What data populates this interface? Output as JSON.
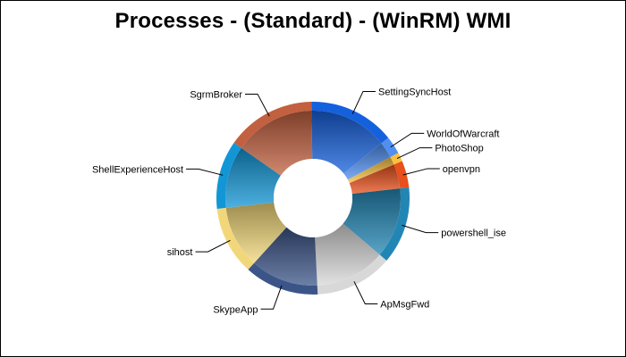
{
  "chart_data": {
    "type": "pie",
    "variant": "donut",
    "title": "Processes - (Standard) - (WinRM) WMI",
    "legend": "none",
    "slices": [
      {
        "label": "SgrmBroker",
        "value": 15.0,
        "color": "#c2603f"
      },
      {
        "label": "SettingSyncHost",
        "value": 14.5,
        "color": "#1560dc"
      },
      {
        "label": "WorldOfWarcraft",
        "value": 3.0,
        "color": "#4f8ff0"
      },
      {
        "label": "PhotoShop",
        "value": 1.5,
        "color": "#f8c040"
      },
      {
        "label": "openvpn",
        "value": 4.5,
        "color": "#e8501c"
      },
      {
        "label": "powershell_ise",
        "value": 13.0,
        "color": "#2286b4"
      },
      {
        "label": "ApMsgFwd",
        "value": 13.0,
        "color": "#d8d8d8"
      },
      {
        "label": "SkypeApp",
        "value": 12.5,
        "color": "#3c5588"
      },
      {
        "label": "sihost",
        "value": 11.5,
        "color": "#f2d77a"
      },
      {
        "label": "ShellExperienceHost",
        "value": 11.5,
        "color": "#1296d6"
      }
    ]
  }
}
